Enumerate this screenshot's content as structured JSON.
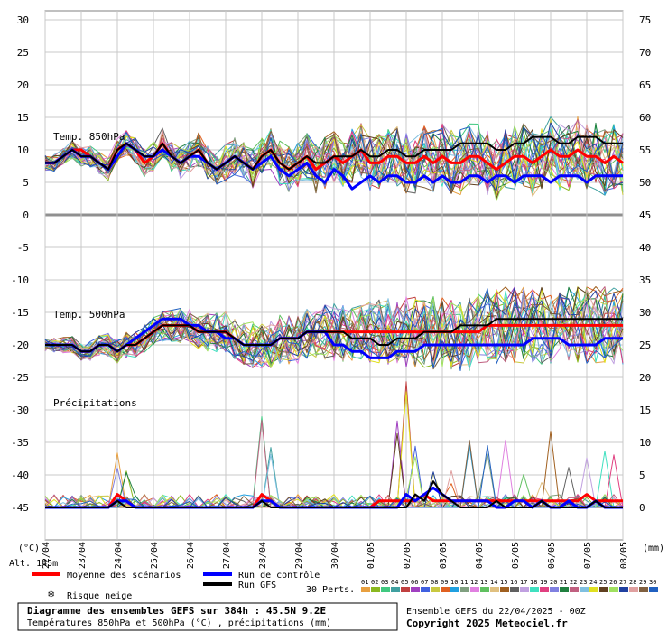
{
  "chart_data": {
    "type": "line",
    "title": "Diagramme des ensembles GEFS sur 384h : 45.5N 9.2E",
    "subtitle": "Températures 850hPa et 500hPa (°C) , précipitations (mm)",
    "xlabel": "",
    "ylabel_left": "(°C)",
    "ylabel_right": "(mm)",
    "x_ticks": [
      "22/04",
      "23/04",
      "24/04",
      "25/04",
      "26/04",
      "27/04",
      "28/04",
      "29/04",
      "30/04",
      "01/05",
      "02/05",
      "03/05",
      "04/05",
      "05/05",
      "06/05",
      "07/05",
      "08/05"
    ],
    "y_left_ticks": [
      30,
      25,
      20,
      15,
      10,
      5,
      0,
      -5,
      -10,
      -15,
      -20,
      -25,
      -30,
      -35,
      -40,
      -45
    ],
    "y_right_ticks": [
      75,
      70,
      65,
      60,
      55,
      50,
      45,
      40,
      35,
      30,
      25,
      20,
      15,
      10,
      5,
      0
    ],
    "ylim_left": [
      -50,
      30
    ],
    "ylim_right": [
      -5,
      75
    ],
    "grid": true,
    "panel_labels": {
      "t850": "Temp. 850hPa",
      "t500": "Temp. 500hPa",
      "precip": "Précipitations"
    },
    "altitude": "Alt. 145m",
    "x_step_hours": 6,
    "series": [
      {
        "name": "Moyenne des scénarios",
        "color": "#ff0000",
        "t850": [
          8,
          8,
          9,
          10,
          10,
          9,
          8,
          7,
          10,
          11,
          10,
          8,
          9,
          11,
          9,
          8,
          9,
          10,
          8,
          7,
          8,
          9,
          8,
          7,
          9,
          10,
          8,
          7,
          8,
          9,
          7,
          8,
          9,
          8,
          9,
          10,
          8,
          8,
          9,
          9,
          8,
          8,
          9,
          8,
          9,
          8,
          8,
          9,
          9,
          8,
          7,
          8,
          9,
          9,
          8,
          9,
          10,
          9,
          9,
          10,
          9,
          9,
          8,
          9,
          8
        ],
        "t500": [
          -20,
          -20,
          -20,
          -20,
          -21,
          -21,
          -20,
          -20,
          -21,
          -20,
          -20,
          -19,
          -18,
          -17,
          -17,
          -17,
          -17,
          -18,
          -18,
          -18,
          -18,
          -19,
          -20,
          -20,
          -20,
          -20,
          -19,
          -19,
          -19,
          -18,
          -18,
          -18,
          -18,
          -18,
          -18,
          -18,
          -18,
          -18,
          -18,
          -18,
          -18,
          -18,
          -18,
          -18,
          -18,
          -18,
          -18,
          -18,
          -18,
          -17,
          -17,
          -17,
          -17,
          -17,
          -17,
          -17,
          -17,
          -17,
          -17,
          -17,
          -17,
          -17,
          -17,
          -17,
          -17
        ],
        "precip": [
          0,
          0,
          0,
          0,
          0,
          0,
          0,
          0,
          2,
          1,
          0,
          0,
          0,
          0,
          0,
          0,
          0,
          0,
          0,
          0,
          0,
          0,
          0,
          0,
          2,
          1,
          0,
          0,
          0,
          0,
          0,
          0,
          0,
          0,
          0,
          0,
          0,
          1,
          1,
          1,
          1,
          1,
          2,
          1,
          1,
          1,
          1,
          1,
          1,
          1,
          1,
          1,
          1,
          1,
          1,
          1,
          1,
          1,
          1,
          1,
          2,
          1,
          1,
          1,
          1
        ]
      },
      {
        "name": "Run de contrôle",
        "color": "#0000ff",
        "t850": [
          8,
          8,
          9,
          10,
          9,
          9,
          8,
          7,
          9,
          11,
          10,
          9,
          9,
          10,
          9,
          8,
          9,
          9,
          8,
          7,
          8,
          9,
          8,
          7,
          8,
          9,
          7,
          6,
          7,
          8,
          6,
          5,
          7,
          6,
          4,
          5,
          6,
          5,
          6,
          6,
          5,
          5,
          6,
          5,
          6,
          5,
          5,
          6,
          6,
          5,
          6,
          6,
          5,
          6,
          6,
          6,
          5,
          6,
          6,
          6,
          5,
          6,
          6,
          6,
          6
        ],
        "t500": [
          -20,
          -20,
          -20,
          -20,
          -21,
          -21,
          -20,
          -20,
          -21,
          -20,
          -19,
          -18,
          -17,
          -16,
          -16,
          -16,
          -17,
          -17,
          -18,
          -18,
          -19,
          -19,
          -20,
          -20,
          -20,
          -20,
          -19,
          -19,
          -19,
          -18,
          -18,
          -18,
          -20,
          -20,
          -21,
          -21,
          -22,
          -22,
          -22,
          -21,
          -21,
          -21,
          -20,
          -20,
          -20,
          -20,
          -20,
          -20,
          -20,
          -20,
          -20,
          -20,
          -20,
          -20,
          -19,
          -19,
          -19,
          -19,
          -20,
          -20,
          -20,
          -20,
          -19,
          -19,
          -19
        ],
        "precip": [
          0,
          0,
          0,
          0,
          0,
          0,
          0,
          0,
          1,
          1,
          0,
          0,
          0,
          0,
          0,
          0,
          0,
          0,
          0,
          0,
          0,
          0,
          0,
          0,
          1,
          1,
          0,
          0,
          0,
          0,
          0,
          0,
          0,
          0,
          0,
          0,
          0,
          0,
          0,
          0,
          2,
          1,
          2,
          3,
          2,
          1,
          1,
          1,
          1,
          1,
          0,
          0,
          1,
          1,
          0,
          1,
          0,
          0,
          1,
          0,
          0,
          1,
          0,
          0,
          0
        ]
      },
      {
        "name": "Run GFS",
        "color": "#000000",
        "t850": [
          8,
          8,
          9,
          10,
          9,
          9,
          8,
          7,
          10,
          11,
          10,
          9,
          9,
          11,
          9,
          8,
          9,
          10,
          8,
          7,
          8,
          9,
          8,
          7,
          9,
          10,
          8,
          7,
          8,
          9,
          8,
          8,
          9,
          9,
          9,
          10,
          9,
          9,
          10,
          10,
          9,
          9,
          10,
          10,
          10,
          10,
          11,
          11,
          11,
          11,
          10,
          10,
          11,
          11,
          12,
          12,
          12,
          11,
          11,
          12,
          12,
          12,
          11,
          11,
          11
        ],
        "t500": [
          -20,
          -20,
          -20,
          -20,
          -21,
          -21,
          -20,
          -20,
          -21,
          -20,
          -20,
          -19,
          -18,
          -17,
          -17,
          -17,
          -17,
          -18,
          -18,
          -18,
          -18,
          -19,
          -20,
          -20,
          -20,
          -20,
          -19,
          -19,
          -19,
          -18,
          -18,
          -18,
          -18,
          -18,
          -19,
          -19,
          -19,
          -20,
          -20,
          -19,
          -19,
          -19,
          -18,
          -18,
          -18,
          -18,
          -17,
          -17,
          -17,
          -17,
          -16,
          -16,
          -16,
          -16,
          -16,
          -16,
          -16,
          -16,
          -16,
          -16,
          -16,
          -16,
          -16,
          -16,
          -16
        ],
        "precip": [
          0,
          0,
          0,
          0,
          0,
          0,
          0,
          0,
          1,
          0,
          0,
          0,
          0,
          0,
          0,
          0,
          0,
          0,
          0,
          0,
          0,
          0,
          0,
          0,
          1,
          0,
          0,
          0,
          0,
          0,
          0,
          0,
          0,
          0,
          0,
          0,
          0,
          0,
          0,
          0,
          0,
          2,
          1,
          4,
          2,
          1,
          0,
          0,
          0,
          0,
          1,
          0,
          0,
          0,
          0,
          1,
          0,
          0,
          0,
          0,
          0,
          1,
          0,
          0,
          0
        ]
      }
    ],
    "perturbations": {
      "label": "30 Perts.",
      "ids": [
        "01",
        "02",
        "03",
        "04",
        "05",
        "06",
        "07",
        "08",
        "09",
        "10",
        "11",
        "12",
        "13",
        "14",
        "15",
        "16",
        "17",
        "18",
        "19",
        "20",
        "21",
        "22",
        "23",
        "24",
        "25",
        "26",
        "27",
        "28",
        "29",
        "30"
      ],
      "colors": [
        "#e8a040",
        "#8ab820",
        "#40c880",
        "#40a0a0",
        "#c04040",
        "#a040c0",
        "#4060e0",
        "#c8c840",
        "#e06020",
        "#20a0e0",
        "#80a080",
        "#e080e0",
        "#60c060",
        "#e0c080",
        "#a06020",
        "#606060",
        "#c0a0e0",
        "#40e0c0",
        "#e04080",
        "#8080e0",
        "#208040",
        "#c06080",
        "#80c0e0",
        "#e0e020",
        "#604020",
        "#a0e060",
        "#2040a0",
        "#e0a0a0",
        "#806040",
        "#2060c0"
      ],
      "t850_base": [
        8,
        8,
        9,
        10,
        9,
        9,
        8,
        7,
        10,
        11,
        10,
        8,
        9,
        11,
        9,
        8,
        9,
        10,
        8,
        7,
        8,
        9,
        8,
        7,
        9,
        10,
        8,
        7,
        8,
        9,
        7,
        8,
        9,
        8,
        9,
        10,
        8,
        8,
        9,
        9,
        8,
        8,
        9,
        8,
        9,
        8,
        8,
        9,
        9,
        8,
        7,
        8,
        9,
        9,
        8,
        9,
        10,
        9,
        9,
        10,
        9,
        9,
        8,
        9,
        8
      ],
      "t500_base": [
        -20,
        -20,
        -20,
        -20,
        -21,
        -21,
        -20,
        -20,
        -21,
        -20,
        -20,
        -19,
        -18,
        -17,
        -17,
        -17,
        -17,
        -18,
        -18,
        -18,
        -18,
        -19,
        -20,
        -20,
        -20,
        -20,
        -19,
        -19,
        -19,
        -18,
        -18,
        -18,
        -18,
        -18,
        -18,
        -18,
        -18,
        -18,
        -18,
        -18,
        -18,
        -18,
        -18,
        -18,
        -18,
        -18,
        -18,
        -18,
        -18,
        -17,
        -17,
        -17,
        -17,
        -17,
        -17,
        -17,
        -17,
        -17,
        -17,
        -17,
        -17,
        -17,
        -17,
        -17,
        -17
      ],
      "spread_850": 4,
      "spread_500": 5,
      "precip_peaks": [
        [
          8,
          12
        ],
        [
          9,
          6
        ],
        [
          24,
          17
        ],
        [
          25,
          10
        ],
        [
          40,
          20
        ],
        [
          39,
          15
        ],
        [
          41,
          12
        ],
        [
          43,
          9
        ],
        [
          45,
          7
        ],
        [
          47,
          15
        ],
        [
          49,
          13
        ],
        [
          51,
          12
        ],
        [
          53,
          7
        ],
        [
          55,
          5
        ],
        [
          56,
          20
        ],
        [
          58,
          10
        ],
        [
          60,
          12
        ],
        [
          62,
          11
        ],
        [
          63,
          10
        ]
      ]
    }
  },
  "legend": {
    "mean": "Moyenne des scénarios",
    "control": "Run de contrôle",
    "gfs": "Run GFS",
    "snow": "Risque neige",
    "perts": "30 Perts."
  },
  "footer": {
    "title": "Diagramme des ensembles GEFS sur 384h : 45.5N 9.2E",
    "subtitle": "Températures 850hPa et 500hPa (°C) , précipitations (mm)",
    "run": "Ensemble GEFS du 22/04/2025 - 00Z",
    "copyright": "Copyright 2025 Meteociel.fr"
  },
  "colors": {
    "mean": "#ff0000",
    "control": "#0000ff",
    "gfs": "#000000",
    "grid": "#c8c8c8",
    "snow": "#3090e0"
  }
}
